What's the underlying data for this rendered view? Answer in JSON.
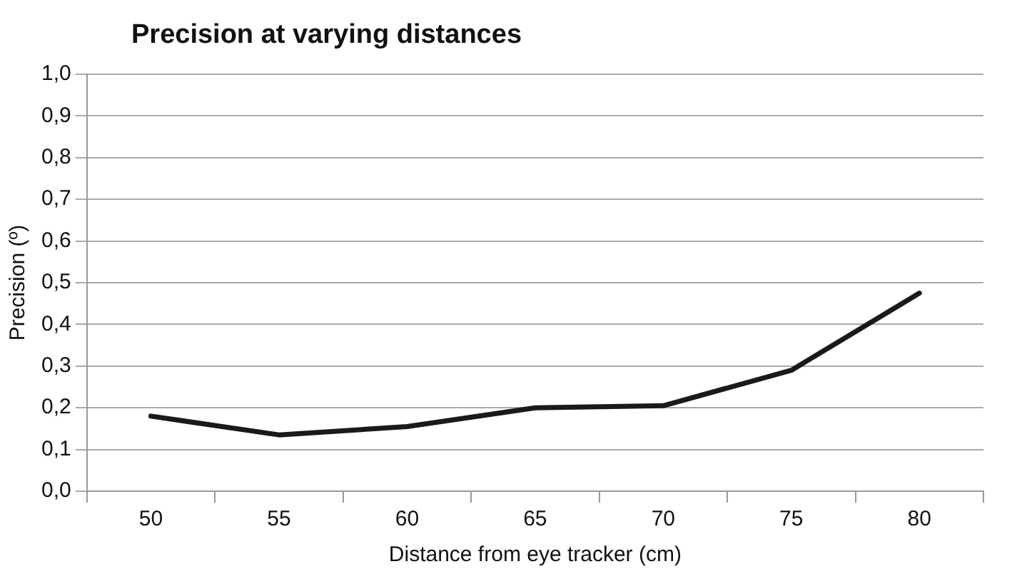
{
  "chart_data": {
    "type": "line",
    "title": "Precision at varying distances",
    "xlabel": "Distance from eye tracker (cm)",
    "ylabel": "Precision (º)",
    "categories": [
      "50",
      "55",
      "60",
      "65",
      "70",
      "75",
      "80"
    ],
    "series": [
      {
        "color": "#1a1a1a",
        "values": [
          0.18,
          0.135,
          0.155,
          0.2,
          0.205,
          0.29,
          0.475
        ]
      }
    ],
    "ylim": [
      0,
      1
    ],
    "yticks": [
      {
        "value": 0,
        "label": "0,0"
      },
      {
        "value": 0.1,
        "label": "0,1"
      },
      {
        "value": 0.2,
        "label": "0,2"
      },
      {
        "value": 0.3,
        "label": "0,3"
      },
      {
        "value": 0.4,
        "label": "0,4"
      },
      {
        "value": 0.5,
        "label": "0,5"
      },
      {
        "value": 0.6,
        "label": "0,6"
      },
      {
        "value": 0.7,
        "label": "0,7"
      },
      {
        "value": 0.8,
        "label": "0,8"
      },
      {
        "value": 0.9,
        "label": "0,9"
      },
      {
        "value": 1,
        "label": "1,0"
      }
    ],
    "grid": "y",
    "legend": false,
    "marker": "none",
    "line_style": "solid"
  }
}
